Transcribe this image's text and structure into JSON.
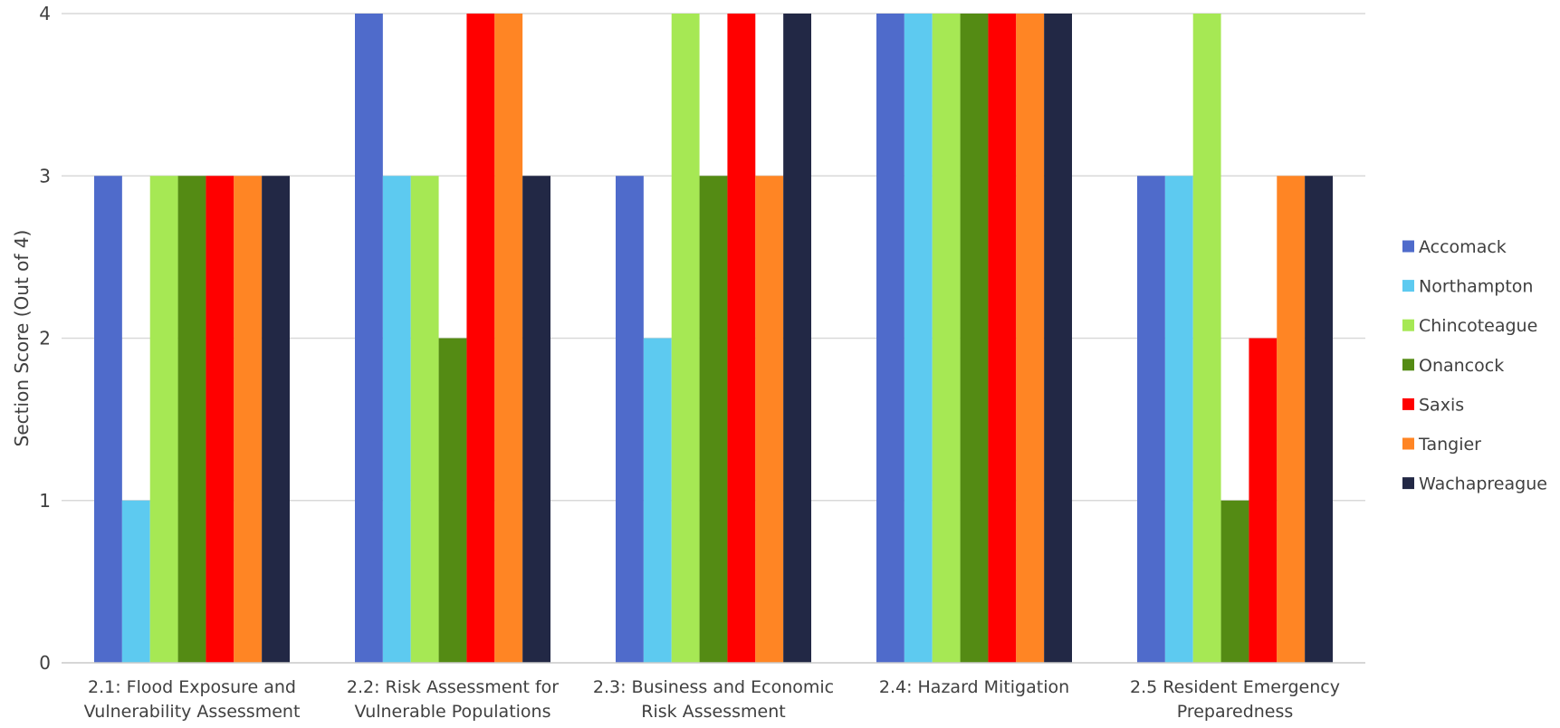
{
  "chart_data": {
    "type": "bar",
    "title": "",
    "xlabel": "",
    "ylabel": "Section Score (Out of 4)",
    "ylim": [
      0,
      4
    ],
    "yticks": [
      0,
      1,
      2,
      3,
      4
    ],
    "grid": true,
    "legend_position": "right",
    "categories": [
      [
        "2.1: Flood Exposure and",
        "Vulnerability Assessment"
      ],
      [
        "2.2: Risk Assessment for",
        "Vulnerable Populations"
      ],
      [
        "2.3: Business and Economic",
        "Risk Assessment"
      ],
      [
        "2.4: Hazard Mitigation"
      ],
      [
        "2.5 Resident Emergency",
        "Preparedness"
      ]
    ],
    "series": [
      {
        "name": "Accomack",
        "color": "#4F6BCB",
        "values": [
          3,
          4,
          3,
          4,
          3
        ]
      },
      {
        "name": "Northampton",
        "color": "#5DCAF0",
        "values": [
          1,
          3,
          2,
          4,
          3
        ]
      },
      {
        "name": "Chincoteague",
        "color": "#A6E854",
        "values": [
          3,
          3,
          4,
          4,
          4
        ]
      },
      {
        "name": "Onancock",
        "color": "#548B14",
        "values": [
          3,
          2,
          3,
          4,
          1
        ]
      },
      {
        "name": "Saxis",
        "color": "#FF0000",
        "values": [
          3,
          4,
          4,
          4,
          2
        ]
      },
      {
        "name": "Tangier",
        "color": "#FF8524",
        "values": [
          3,
          4,
          3,
          4,
          3
        ]
      },
      {
        "name": "Wachapreague",
        "color": "#222845",
        "values": [
          3,
          3,
          4,
          4,
          3
        ]
      }
    ],
    "colors": {
      "grid": "#d9d9d9",
      "axis": "#c9c9c9",
      "text": "#404040"
    }
  }
}
